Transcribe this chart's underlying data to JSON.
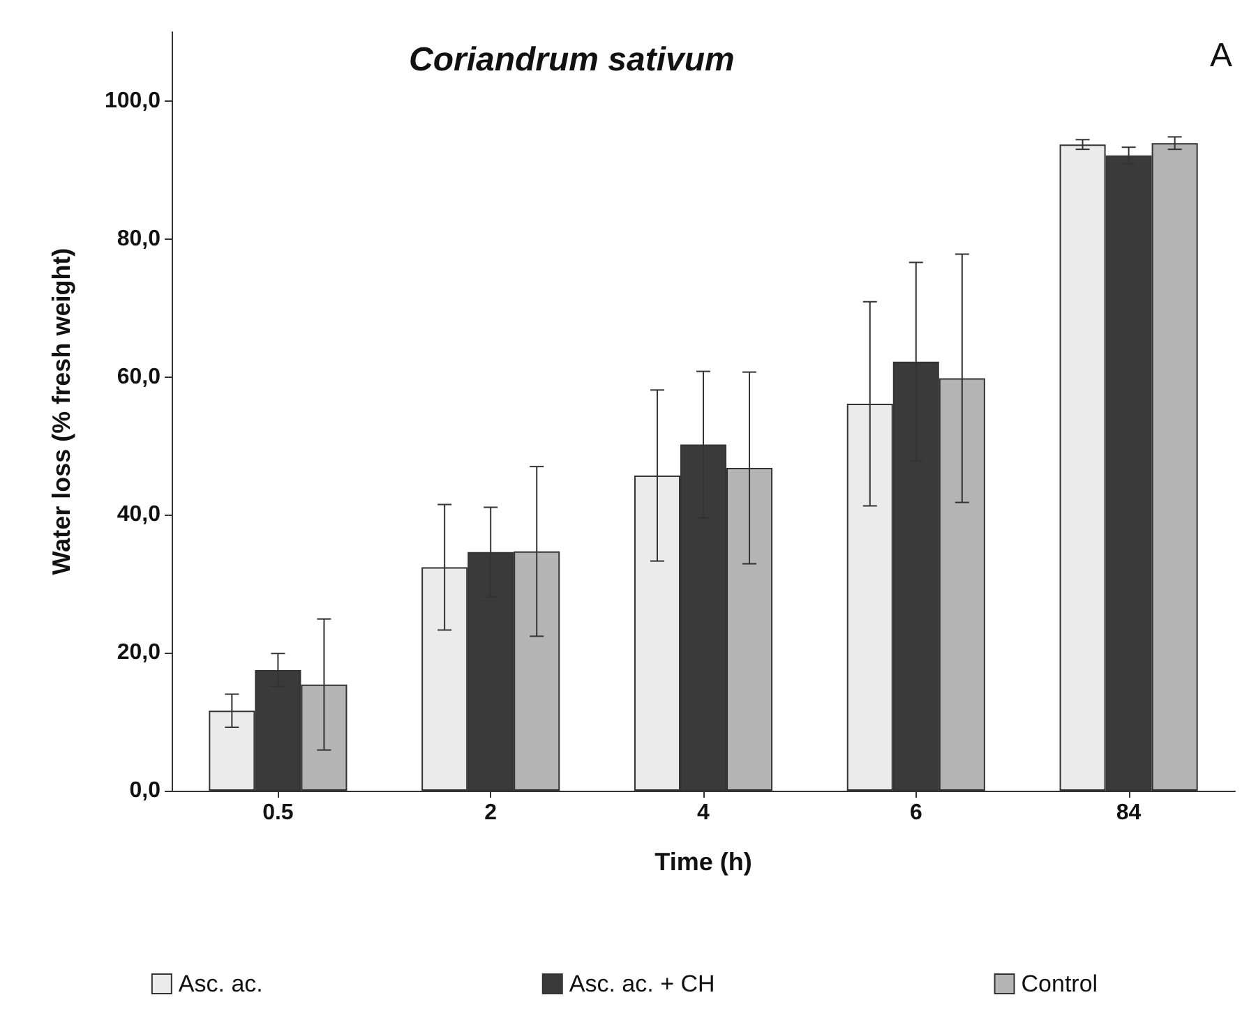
{
  "chart_data": {
    "type": "bar",
    "title": "Coriandrum sativum",
    "xlabel": "Time (h)",
    "ylabel": "Water loss (% fresh weight)",
    "annotations": [
      "A"
    ],
    "categories": [
      "0.5",
      "2",
      "4",
      "6",
      "84"
    ],
    "series": [
      {
        "name": "Asc. ac.",
        "color": "#ebebeb",
        "values": [
          11.6,
          32.4,
          45.7,
          56.1,
          93.7
        ],
        "errors": [
          2.4,
          9.1,
          12.4,
          14.8,
          0.7
        ]
      },
      {
        "name": "Asc. ac. + CH",
        "color": "#3a3a3a",
        "values": [
          17.5,
          34.6,
          50.2,
          62.2,
          92.1
        ],
        "errors": [
          2.4,
          6.5,
          10.6,
          14.4,
          1.2
        ]
      },
      {
        "name": "Control",
        "color": "#b4b4b4",
        "values": [
          15.4,
          34.7,
          46.8,
          59.8,
          93.9
        ],
        "errors": [
          9.5,
          12.3,
          13.9,
          18,
          0.9
        ]
      }
    ],
    "ylim": [
      0,
      110
    ],
    "yticks": [
      {
        "value": 0,
        "label": "0,0"
      },
      {
        "value": 20,
        "label": "20,0"
      },
      {
        "value": 40,
        "label": "40,0"
      },
      {
        "value": 60,
        "label": "60,0"
      },
      {
        "value": 80,
        "label": "80,0"
      },
      {
        "value": 100,
        "label": "100,0"
      }
    ],
    "grid": false,
    "legend": "bottom"
  }
}
